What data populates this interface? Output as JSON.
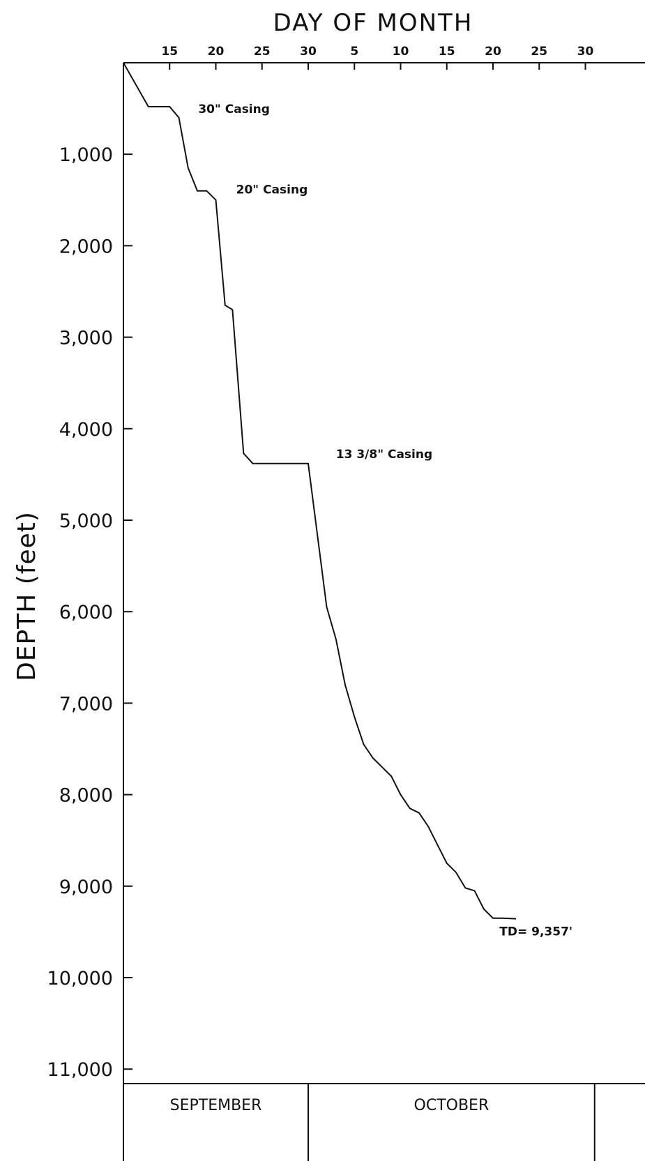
{
  "chart_data": {
    "type": "line",
    "title": "DAY OF MONTH",
    "ylabel": "DEPTH (feet)",
    "xlabel": "",
    "x_ticks": [
      "15",
      "20",
      "25",
      "30",
      "5",
      "10",
      "15",
      "20",
      "25",
      "30"
    ],
    "x_tick_days": [
      15,
      20,
      25,
      30,
      35,
      40,
      45,
      50,
      55,
      60
    ],
    "y_ticks": [
      "1,000",
      "2,000",
      "3,000",
      "4,000",
      "5,000",
      "6,000",
      "7,000",
      "8,000",
      "9,000",
      "10,000",
      "11,000"
    ],
    "y_tick_values": [
      1000,
      2000,
      3000,
      4000,
      5000,
      6000,
      7000,
      8000,
      9000,
      10000,
      11000
    ],
    "xlim": [
      10,
      61
    ],
    "ylim": [
      0,
      11000
    ],
    "months": [
      "SEPTEMBER",
      "OCTOBER"
    ],
    "month_boundaries": [
      10,
      30,
      61
    ],
    "series": [
      {
        "x": [
          10,
          12.7,
          15,
          16,
          17,
          18,
          19,
          20,
          21,
          21.8,
          23,
          24,
          25,
          27,
          30,
          32,
          33,
          34,
          35,
          36,
          37,
          38,
          39,
          40,
          41,
          42,
          43,
          44,
          45,
          46,
          47,
          48,
          49,
          50,
          51,
          52.5
        ],
        "y": [
          0,
          480,
          480,
          600,
          1150,
          1400,
          1400,
          1500,
          2650,
          2700,
          4270,
          4380,
          4380,
          4380,
          4380,
          5950,
          6300,
          6800,
          7150,
          7450,
          7600,
          7700,
          7800,
          8000,
          8150,
          8200,
          8350,
          8550,
          8750,
          8850,
          9020,
          9050,
          9250,
          9350,
          9350,
          9357
        ]
      }
    ],
    "annotations": [
      {
        "text": "30\" Casing",
        "x": 18.1,
        "y": 550
      },
      {
        "text": "20\" Casing",
        "x": 22.2,
        "y": 1430
      },
      {
        "text": "13 3/8\" Casing",
        "x": 33,
        "y": 4320
      },
      {
        "text": "TD= 9,357'",
        "x": 50.7,
        "y": 9540
      }
    ],
    "grid": false
  }
}
